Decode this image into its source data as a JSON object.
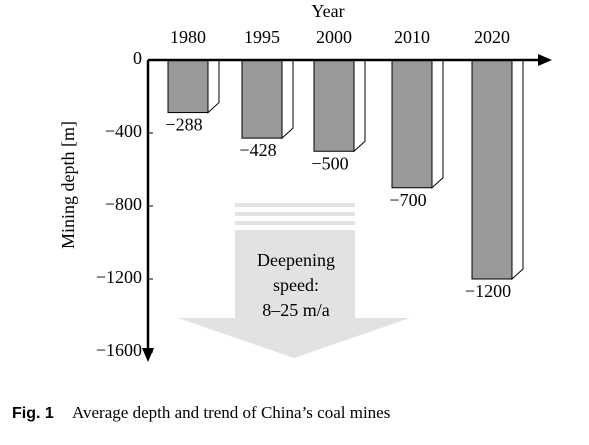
{
  "chart_data": {
    "type": "bar",
    "x_label": "Year",
    "y_label": "Mining depth [m]",
    "categories": [
      "1980",
      "1995",
      "2000",
      "2010",
      "2020"
    ],
    "values": [
      -288,
      -428,
      -500,
      -700,
      -1200
    ],
    "value_labels": [
      "−288",
      "−428",
      "−500",
      "−700",
      "−1200"
    ],
    "color": "#999999",
    "ylim": [
      0,
      -1600
    ],
    "yticks": [
      0,
      {
        "value": -400,
        "label": "−400"
      },
      {
        "value": -800,
        "label": "−800"
      },
      {
        "value": -1200,
        "label": "−1200"
      },
      {
        "value": -1600,
        "label": "−1600"
      }
    ],
    "annotation": [
      "Deepening",
      "speed:",
      "8–25 m/a"
    ]
  },
  "caption": {
    "label": "Fig. 1",
    "text": "Average depth and trend of China’s coal mines"
  }
}
